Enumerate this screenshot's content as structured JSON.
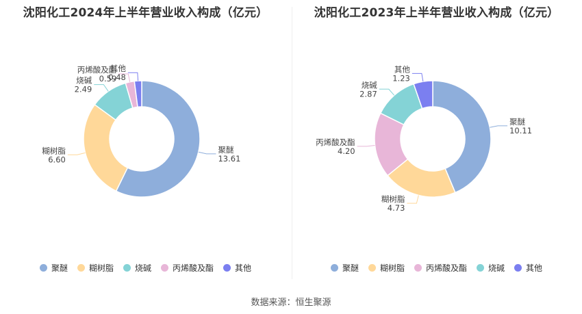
{
  "colors": {
    "聚醚": "#8eaedb",
    "糊树脂": "#ffd899",
    "烧碱": "#84d3d6",
    "丙烯酸及酯": "#e8b6d8",
    "其他": "#7b7ff0"
  },
  "chart_data": [
    {
      "type": "pie",
      "title": "沈阳化工2024年上半年营业收入构成（亿元）",
      "categories": [
        "聚醚",
        "糊树脂",
        "烧碱",
        "丙烯酸及酯",
        "其他"
      ],
      "values": [
        13.61,
        6.6,
        2.49,
        0.59,
        0.48
      ],
      "value_labels": [
        "13.61",
        "6.60",
        "2.49",
        "0.59",
        "0.48"
      ],
      "legend": [
        "聚醚",
        "糊树脂",
        "烧碱",
        "丙烯酸及酯",
        "其他"
      ]
    },
    {
      "type": "pie",
      "title": "沈阳化工2023年上半年营业收入构成（亿元）",
      "categories": [
        "聚醚",
        "糊树脂",
        "丙烯酸及酯",
        "烧碱",
        "其他"
      ],
      "values": [
        10.11,
        4.73,
        4.2,
        2.87,
        1.23
      ],
      "value_labels": [
        "10.11",
        "4.73",
        "4.20",
        "2.87",
        "1.23"
      ],
      "legend": [
        "聚醚",
        "糊树脂",
        "丙烯酸及酯",
        "烧碱",
        "其他"
      ]
    }
  ],
  "source": "数据来源：恒生聚源"
}
